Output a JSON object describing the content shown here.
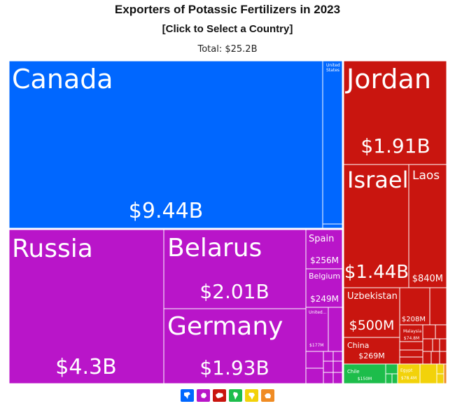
{
  "title": "Exporters of Potassic Fertilizers in 2023",
  "subtitle": "[Click to Select a Country]",
  "total": "Total: $25.2B",
  "colors": {
    "north_america": "#0067ff",
    "europe": "#b915c9",
    "asia": "#c9150f",
    "south_america": "#1dbd4b",
    "africa": "#f2d20a",
    "oceania": "#f08c24"
  },
  "legend": [
    {
      "name": "north-america-icon",
      "color": "#0067ff"
    },
    {
      "name": "europe-icon",
      "color": "#b915c9"
    },
    {
      "name": "asia-icon",
      "color": "#c9150f"
    },
    {
      "name": "south-america-icon",
      "color": "#1dbd4b"
    },
    {
      "name": "africa-icon",
      "color": "#f2d20a"
    },
    {
      "name": "oceania-icon",
      "color": "#f08c24"
    }
  ],
  "chart_data": {
    "type": "treemap",
    "title": "Exporters of Potassic Fertilizers in 2023",
    "total": "$25.2B",
    "tiles": [
      {
        "label": "Canada",
        "value_label": "$9.44B",
        "value": 9.44,
        "region": "north_america"
      },
      {
        "label": "United States",
        "value_label": "",
        "value": 0.5,
        "region": "north_america"
      },
      {
        "label": "Russia",
        "value_label": "$4.3B",
        "value": 4.3,
        "region": "europe"
      },
      {
        "label": "Belarus",
        "value_label": "$2.01B",
        "value": 2.01,
        "region": "europe"
      },
      {
        "label": "Germany",
        "value_label": "$1.93B",
        "value": 1.93,
        "region": "europe"
      },
      {
        "label": "Spain",
        "value_label": "$256M",
        "value": 0.256,
        "region": "europe"
      },
      {
        "label": "Belgium",
        "value_label": "$249M",
        "value": 0.249,
        "region": "europe"
      },
      {
        "label": "United...",
        "value_label": "$177M",
        "value": 0.177,
        "region": "europe"
      },
      {
        "label": "Jordan",
        "value_label": "$1.91B",
        "value": 1.91,
        "region": "asia"
      },
      {
        "label": "Israel",
        "value_label": "$1.44B",
        "value": 1.44,
        "region": "asia"
      },
      {
        "label": "Laos",
        "value_label": "$840M",
        "value": 0.84,
        "region": "asia"
      },
      {
        "label": "Uzbekistan",
        "value_label": "$500M",
        "value": 0.5,
        "region": "asia"
      },
      {
        "label": "",
        "value_label": "$208M",
        "value": 0.208,
        "region": "asia"
      },
      {
        "label": "China",
        "value_label": "$269M",
        "value": 0.269,
        "region": "asia"
      },
      {
        "label": "Malaysia",
        "value_label": "$74.8M",
        "value": 0.0748,
        "region": "asia"
      },
      {
        "label": "Chile",
        "value_label": "$150M",
        "value": 0.15,
        "region": "south_america"
      },
      {
        "label": "Egypt",
        "value_label": "$78.4M",
        "value": 0.0784,
        "region": "africa"
      }
    ]
  }
}
